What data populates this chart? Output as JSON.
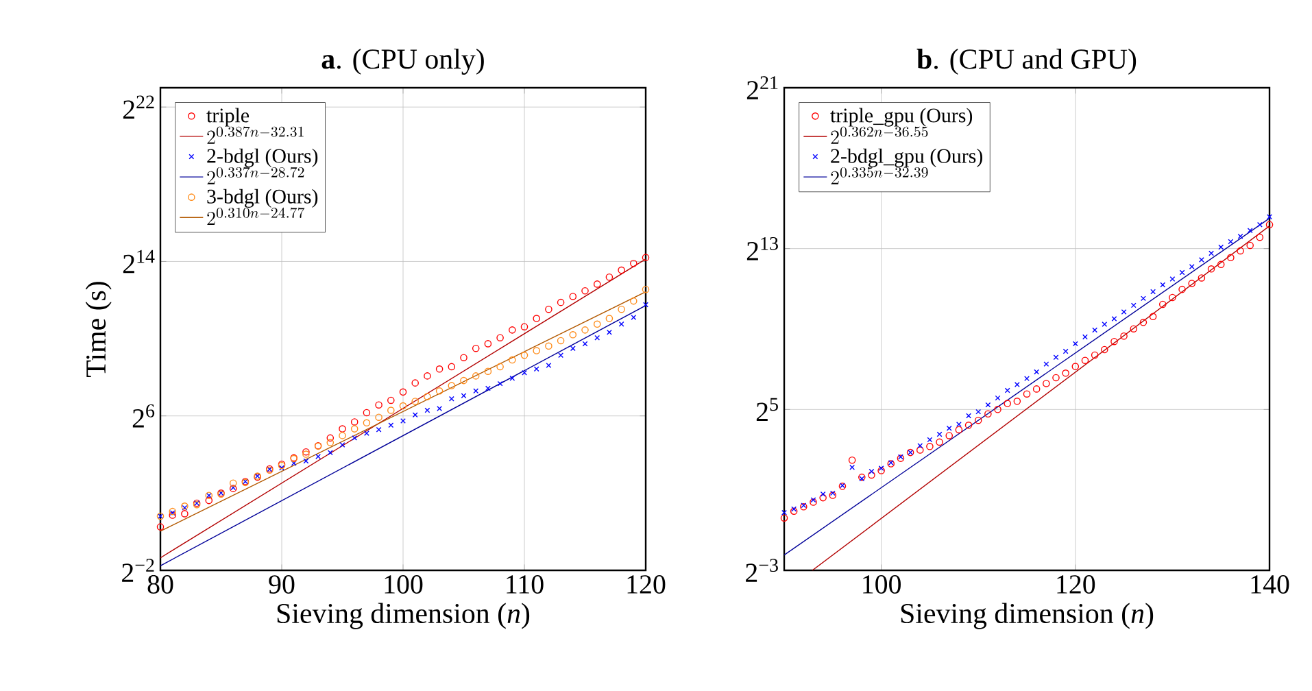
{
  "chart_data": [
    {
      "type": "scatter",
      "title": "**a**. (CPU only)",
      "xlabel": "Sieving dimension (*n*)",
      "ylabel": "Time (s)",
      "log": "y",
      "grid": true,
      "legend": "top left",
      "xlim": [
        80,
        120
      ],
      "xticks": [
        80,
        90,
        100,
        110,
        120
      ],
      "ylim": [
        0.25,
        8388608
      ],
      "yticks": [
        {
          "value": 0.25,
          "label": "2$^{−2}$"
        },
        {
          "value": 64,
          "label": "2$^{6}$"
        },
        {
          "value": 16384,
          "label": "2$^{14}$"
        },
        {
          "value": 4194304,
          "label": "2$^{22}$"
        }
      ],
      "x": [
        80,
        81,
        82,
        83,
        84,
        85,
        86,
        87,
        88,
        89,
        90,
        91,
        92,
        93,
        94,
        95,
        96,
        97,
        98,
        99,
        100,
        101,
        102,
        103,
        104,
        105,
        106,
        107,
        108,
        109,
        110,
        111,
        112,
        113,
        114,
        115,
        116,
        117,
        118,
        119,
        120
      ],
      "series": [
        {
          "name": "triple",
          "marker": "circle",
          "color": "#ff0000",
          "values": [
            1.19,
            1.81,
            1.91,
            2.79,
            3.07,
            4,
            4.72,
            6.06,
            7.11,
            9.57,
            11.3,
            14.2,
            17.6,
            21.9,
            29.0,
            40.2,
            51.6,
            72.0,
            95.0,
            112,
            151,
            209,
            269,
            345,
            375,
            519,
            724,
            855,
            1060,
            1400,
            1570,
            2120,
            2940,
            3770,
            4670,
            5710,
            7280,
            9350,
            12000,
            15300,
            18900
          ]
        },
        {
          "name": "2^{0.387n-32.31}",
          "type": "line",
          "color": "#b30000",
          "x": [
            80,
            120
          ],
          "values": [
            0.392,
            17900
          ]
        },
        {
          "name": "2-bdgl (Ours)",
          "marker": "cross",
          "color": "#0000ff",
          "values": [
            1.75,
            1.97,
            2.36,
            2.79,
            3.68,
            4,
            4.89,
            6.06,
            7.36,
            9.45,
            9.92,
            11.7,
            12.7,
            14.9,
            17.1,
            22.6,
            29.0,
            34.3,
            39.1,
            45.9,
            53.4,
            66.2,
            78.3,
            83.3,
            118,
            132,
            157,
            172,
            204,
            247,
            302,
            345,
            393,
            564,
            724,
            855,
            1060,
            1290,
            1730,
            2200,
            3470
          ]
        },
        {
          "name": "2^{0.337n-28.72}",
          "type": "line",
          "color": "#000099",
          "x": [
            80,
            120
          ],
          "values": [
            0.295,
            3370
          ]
        },
        {
          "name": "3-bdgl (Ours)",
          "marker": "circle",
          "color": "#ff8c1a",
          "values": [
            1.75,
            2.07,
            2.51,
            2.64,
            3.68,
            3.86,
            5.74,
            5.86,
            7.36,
            9.13,
            10.8,
            13.8,
            16.2,
            21.6,
            24.6,
            31.6,
            40.2,
            49.9,
            61.0,
            78.3,
            91.8,
            108,
            128,
            157,
            190,
            228,
            269,
            317,
            375,
            478,
            564,
            666,
            787,
            955,
            1180,
            1400,
            1730,
            2120,
            2940,
            3960,
            6000
          ]
        },
        {
          "name": "2^{0.310n-24.77}",
          "type": "line",
          "color": "#b35900",
          "x": [
            80,
            120
          ],
          "values": [
            1.02,
            5520
          ]
        }
      ]
    },
    {
      "type": "scatter",
      "title": "**b**. (CPU and GPU)",
      "xlabel": "Sieving dimension (*n*)",
      "log": "y",
      "grid": true,
      "legend": "top left",
      "xlim": [
        90,
        140
      ],
      "xticks": [
        100,
        120,
        140
      ],
      "ylim": [
        0.125,
        2097152
      ],
      "yticks": [
        {
          "value": 0.125,
          "label": "2$^{−3}$"
        },
        {
          "value": 32,
          "label": "2$^{5}$"
        },
        {
          "value": 8192,
          "label": "2$^{13}$"
        },
        {
          "value": 2097152,
          "label": "2$^{21}$"
        }
      ],
      "x": [
        90,
        91,
        92,
        93,
        94,
        95,
        96,
        97,
        98,
        99,
        100,
        101,
        102,
        103,
        104,
        105,
        106,
        107,
        108,
        109,
        110,
        111,
        112,
        113,
        114,
        115,
        116,
        117,
        118,
        119,
        120,
        121,
        122,
        123,
        124,
        125,
        126,
        127,
        128,
        129,
        130,
        131,
        132,
        133,
        134,
        135,
        136,
        137,
        138,
        139,
        140
      ],
      "series": [
        {
          "name": "triple_gpu (Ours)",
          "marker": "circle",
          "color": "#ff0000",
          "values": [
            0.758,
            0.959,
            1.117,
            1.31,
            1.526,
            1.659,
            2.27,
            5.58,
            3.1,
            3.34,
            3.89,
            4.92,
            5.94,
            7.26,
            7.89,
            8.94,
            10.4,
            13.0,
            15.9,
            18.6,
            22.0,
            27.5,
            32,
            39.4,
            42.5,
            54.6,
            64.9,
            78.3,
            95.7,
            112,
            141,
            174,
            209,
            252,
            333,
            402,
            516,
            644,
            787,
            1200,
            1520,
            2010,
            2470,
            2980,
            4070,
            4740,
            6000,
            7590,
            9150,
            12100,
            18700
          ]
        },
        {
          "name": "2^{0.362n-36.55}",
          "type": "line",
          "color": "#b30000",
          "x": [
            92.9,
            140
          ],
          "values": [
            0.125,
            17900
          ]
        },
        {
          "name": "2-bdgl_gpu (Ours)",
          "marker": "cross",
          "color": "#0000ff",
          "values": [
            0.914,
            1.035,
            1.173,
            1.414,
            1.729,
            1.79,
            2.33,
            4.35,
            2.95,
            3.78,
            4.23,
            5.1,
            6.23,
            7.26,
            9.19,
            11.3,
            13.6,
            16.7,
            19.2,
            25.8,
            29.6,
            37.5,
            47.5,
            61.8,
            75.6,
            93.1,
            117,
            153,
            193,
            237,
            309,
            391,
            495,
            605,
            729,
            923,
            1160,
            1470,
            1860,
            2350,
            2880,
            3590,
            4390,
            5560,
            6980,
            8600,
            10400,
            12500,
            15300,
            18700,
            24500
          ]
        },
        {
          "name": "2^{0.335n-32.39}",
          "type": "line",
          "color": "#000099",
          "x": [
            90,
            140
          ],
          "values": [
            0.212,
            23300
          ]
        }
      ]
    }
  ]
}
